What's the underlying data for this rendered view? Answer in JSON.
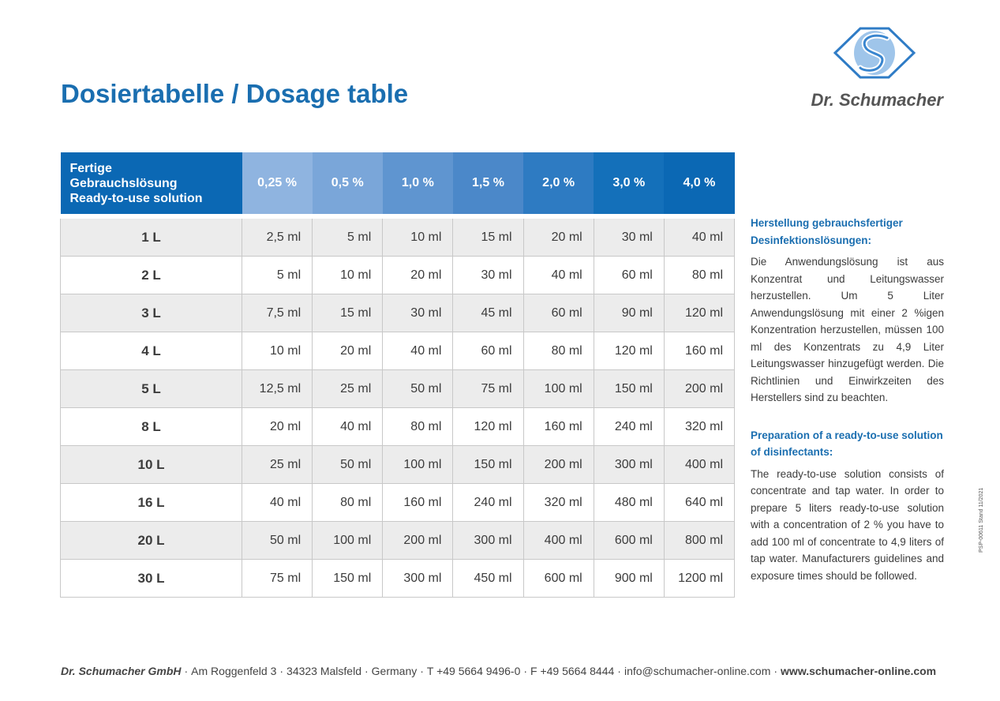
{
  "title": "Dosiertabelle / Dosage table",
  "brand": "Dr. Schumacher",
  "table": {
    "row_header": [
      "Fertige",
      "Gebrauchslösung",
      "Ready-to-use solution"
    ],
    "columns": [
      {
        "label": "0,25 %",
        "color": "#8fb4e0"
      },
      {
        "label": "0,5 %",
        "color": "#7aa6d9"
      },
      {
        "label": "1,0 %",
        "color": "#5f95d0"
      },
      {
        "label": "1,5 %",
        "color": "#4b88c9"
      },
      {
        "label": "2,0 %",
        "color": "#2e7bc2"
      },
      {
        "label": "3,0 %",
        "color": "#1470ba"
      },
      {
        "label": "4,0 %",
        "color": "#0b68b4"
      }
    ],
    "rows": [
      {
        "volume": "1 L",
        "values": [
          "2,5 ml",
          "5 ml",
          "10 ml",
          "15 ml",
          "20 ml",
          "30 ml",
          "40 ml"
        ]
      },
      {
        "volume": "2 L",
        "values": [
          "5 ml",
          "10 ml",
          "20 ml",
          "30 ml",
          "40 ml",
          "60 ml",
          "80 ml"
        ]
      },
      {
        "volume": "3 L",
        "values": [
          "7,5 ml",
          "15 ml",
          "30 ml",
          "45 ml",
          "60 ml",
          "90 ml",
          "120 ml"
        ]
      },
      {
        "volume": "4 L",
        "values": [
          "10 ml",
          "20 ml",
          "40 ml",
          "60 ml",
          "80 ml",
          "120 ml",
          "160 ml"
        ]
      },
      {
        "volume": "5 L",
        "values": [
          "12,5 ml",
          "25 ml",
          "50 ml",
          "75 ml",
          "100 ml",
          "150 ml",
          "200 ml"
        ]
      },
      {
        "volume": "8 L",
        "values": [
          "20 ml",
          "40 ml",
          "80 ml",
          "120 ml",
          "160 ml",
          "240 ml",
          "320 ml"
        ]
      },
      {
        "volume": "10 L",
        "values": [
          "25 ml",
          "50 ml",
          "100 ml",
          "150 ml",
          "200 ml",
          "300 ml",
          "400 ml"
        ]
      },
      {
        "volume": "16 L",
        "values": [
          "40 ml",
          "80 ml",
          "160 ml",
          "240 ml",
          "320 ml",
          "480 ml",
          "640 ml"
        ]
      },
      {
        "volume": "20 L",
        "values": [
          "50 ml",
          "100 ml",
          "200 ml",
          "300 ml",
          "400 ml",
          "600 ml",
          "800 ml"
        ]
      },
      {
        "volume": "30 L",
        "values": [
          "75 ml",
          "150 ml",
          "300 ml",
          "450 ml",
          "600 ml",
          "900 ml",
          "1200 ml"
        ]
      }
    ]
  },
  "sidebar": {
    "de_heading": "Herstellung gebrauchsfertiger Desinfektionslösungen:",
    "de_text": "Die Anwendungslösung ist aus Konzentrat und Leitungswasser herzustellen. Um 5 Liter Anwendungslösung mit einer 2 %igen Konzentration herzustellen, müssen 100 ml des Konzentrats zu 4,9 Liter Leitungswasser hinzugefügt werden. Die Richtlinien und Einwirkzeiten des Herstellers sind zu beachten.",
    "en_heading": "Preparation of a ready-to-use solution of disinfectants:",
    "en_text": "The ready-to-use solution consists of concentrate and tap water. In order to prepare 5 liters ready-to-use solution with a concentration of 2 % you have to add 100 ml of concentrate to 4,9 liters of tap water. Manufacturers guidelines and exposure times should be followed."
  },
  "footer": {
    "company": "Dr. Schumacher GmbH",
    "address": "Am Roggenfeld 3",
    "city": "34323 Malsfeld",
    "country": "Germany",
    "phone": "T +49 5664 9496-0",
    "fax": "F +49 5664 8444",
    "email": "info@schumacher-online.com",
    "website": "www.schumacher-online.com"
  },
  "doc_code": "PSP-00611  Stand 11/2021"
}
